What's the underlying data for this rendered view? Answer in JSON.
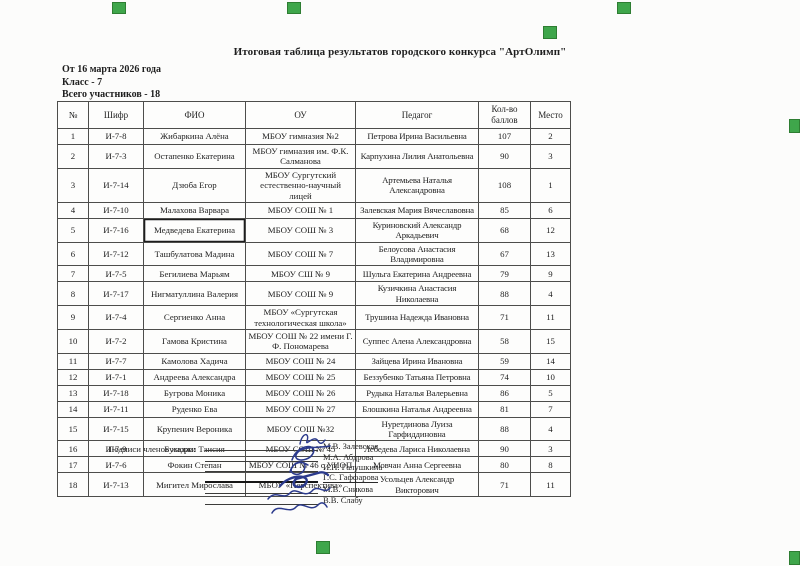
{
  "page": {
    "title": "Итоговая таблица результатов городского конкурса \"АртОлимп\"",
    "date_line": "От 16 марта 2026 года",
    "class_line": "Класс - 7",
    "participants_line": "Всего участников - 18",
    "jury_label": "Подписи членов жюри:"
  },
  "table": {
    "headers": [
      "№",
      "Шифр",
      "ФИО",
      "ОУ",
      "Педагог",
      "Кол-во баллов",
      "Место"
    ],
    "rows": [
      [
        "1",
        "И-7-8",
        "Жибаркина Алёна",
        "МБОУ гимназия №2",
        "Петрова Ирина Васильевна",
        "107",
        "2"
      ],
      [
        "2",
        "И-7-3",
        "Остапенко Екатерина",
        "МБОУ гимназия им. Ф.К. Салманова",
        "Карпухина Лилия Анатольевна",
        "90",
        "3"
      ],
      [
        "3",
        "И-7-14",
        "Дзюба Егор",
        "МБОУ Сургутский естественно-научный лицей",
        "Артемьева Наталья Александровна",
        "108",
        "1"
      ],
      [
        "4",
        "И-7-10",
        "Малахова Варвара",
        "МБОУ СОШ № 1",
        "Залевская Мария Вячеславовна",
        "85",
        "6"
      ],
      [
        "5",
        "И-7-16",
        "Медведева Екатерина",
        "МБОУ СОШ № 3",
        "Куриновский Александр Аркадьевич",
        "68",
        "12"
      ],
      [
        "6",
        "И-7-12",
        "Ташбулатова Мадина",
        "МБОУ СОШ № 7",
        "Белоусова Анастасия Владимировна",
        "67",
        "13"
      ],
      [
        "7",
        "И-7-5",
        "Бегилиева Марьям",
        "МБОУ СШ № 9",
        "Шульга Екатерина Андреевна",
        "79",
        "9"
      ],
      [
        "8",
        "И-7-17",
        "Нигматуллина Валерия",
        "МБОУ СОШ № 9",
        "Кузичкина Анастасия Николаевна",
        "88",
        "4"
      ],
      [
        "9",
        "И-7-4",
        "Сергиенко Анна",
        "МБОУ «Сургутская технологическая школа»",
        "Трушина Надежда Ивановна",
        "71",
        "11"
      ],
      [
        "10",
        "И-7-2",
        "Гамова Кристина",
        "МБОУ СОШ № 22 имени Г. Ф. Пономарева",
        "Суппес Алена Александровна",
        "58",
        "15"
      ],
      [
        "11",
        "И-7-7",
        "Камолова Хадича",
        "МБОУ СОШ № 24",
        "Зайцева Ирина Ивановна",
        "59",
        "14"
      ],
      [
        "12",
        "И-7-1",
        "Андреева Александра",
        "МБОУ СОШ № 25",
        "Беззубенко Татьяна Петровна",
        "74",
        "10"
      ],
      [
        "13",
        "И-7-18",
        "Бугрова Моника",
        "МБОУ СОШ № 26",
        "Рудыка Наталья Валерьевна",
        "86",
        "5"
      ],
      [
        "14",
        "И-7-11",
        "Руденко Ева",
        "МБОУ СОШ № 27",
        "Блошкина Наталья Андреевна",
        "81",
        "7"
      ],
      [
        "15",
        "И-7-15",
        "Крупенич Вероника",
        "МБОУ СОШ №32",
        "Нуретдинова Луиза Гарфиддиновна",
        "88",
        "4"
      ],
      [
        "16",
        "И-7-9",
        "Бузаджи Таисия",
        "МБОУ СОШ № 45",
        "Лебедева Лариса Николаевна",
        "90",
        "3"
      ],
      [
        "17",
        "И-7-6",
        "Фокин Степан",
        "МБОУ СОШ № 46 с УИОП",
        "Мовчан Анна Сергеевна",
        "80",
        "8"
      ],
      [
        "18",
        "И-7-13",
        "Мигител Мирослава",
        "МБОУ «Перспектива»",
        "Усольцев Александр Викторович",
        "71",
        "11"
      ]
    ],
    "highlighted_cell": {
      "row": 5,
      "column": "ФИО"
    }
  },
  "jury": [
    "М.В. Залевская",
    "М.А. Абдрова",
    "И.П. Галушкина",
    "Г.С. Гаффарова",
    "М.В. Сникова",
    "В.В. Слабу"
  ],
  "colors": {
    "marker_green": "#3fa64b",
    "ink_blue": "#2b3a8c",
    "text": "#1e1e1e"
  }
}
